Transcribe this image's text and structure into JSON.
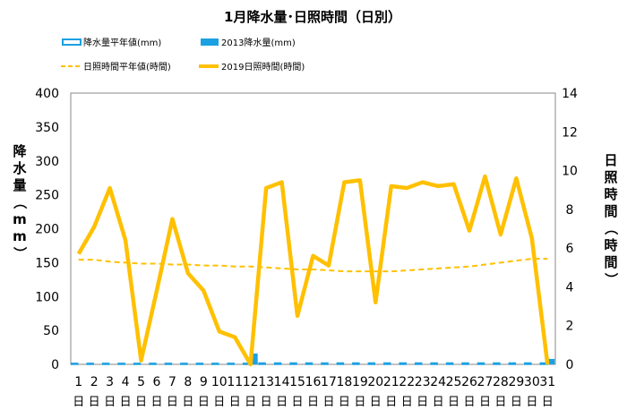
{
  "chart_data": {
    "title": "1月降水量･日照時間（日別）",
    "type": "bar+line",
    "x": [
      "1",
      "2",
      "3",
      "4",
      "5",
      "6",
      "7",
      "8",
      "9",
      "10",
      "11",
      "12",
      "13",
      "14",
      "15",
      "16",
      "17",
      "18",
      "19",
      "20",
      "21",
      "22",
      "23",
      "24",
      "25",
      "26",
      "27",
      "28",
      "29",
      "30",
      "31"
    ],
    "day_suffix": "日",
    "left_axis": {
      "label": "降水量（mm）",
      "range": [
        0,
        400
      ],
      "ticks": [
        0,
        50,
        100,
        150,
        200,
        250,
        300,
        350,
        400
      ]
    },
    "right_axis": {
      "label": "日照時間（時間）",
      "range": [
        0,
        14
      ],
      "ticks": [
        0,
        2,
        4,
        6,
        8,
        10,
        12,
        14
      ]
    },
    "legend": {
      "position": "top",
      "items": {
        "precip_normal": "降水量平年値(mm)",
        "precip_2019": "2013降水量(mm)",
        "sun_normal": "日照時間平年値(時間)",
        "sun_2019": "2019日照時間(時間)"
      }
    },
    "series": [
      {
        "name": "降水量平年値(mm)",
        "axis": "left",
        "type": "bar",
        "style": "outlined",
        "color": "#1BA1E2",
        "values": [
          1.5,
          1.5,
          1.5,
          1.5,
          1.5,
          1.5,
          1.5,
          1.5,
          1.5,
          1.5,
          1.5,
          1.5,
          2,
          2,
          2,
          2,
          2,
          2,
          2,
          2,
          2,
          2,
          2,
          2,
          2,
          2,
          2,
          2,
          2,
          2,
          2
        ]
      },
      {
        "name": "2013降水量(mm)",
        "axis": "left",
        "type": "bar",
        "color": "#1BA1E2",
        "values": [
          0,
          0,
          0,
          0,
          0,
          0,
          0,
          0,
          0,
          0,
          0,
          16,
          0,
          0,
          0,
          0,
          0,
          0,
          0,
          0,
          0,
          0,
          0,
          0,
          0,
          0,
          0,
          0,
          0,
          0,
          8
        ]
      },
      {
        "name": "日照時間平年値(時間)",
        "axis": "right",
        "type": "line",
        "style": "dashed",
        "color": "#FFC000",
        "values": [
          5.4,
          5.4,
          5.3,
          5.25,
          5.2,
          5.2,
          5.15,
          5.15,
          5.1,
          5.1,
          5.05,
          5.05,
          5.0,
          4.95,
          4.9,
          4.9,
          4.85,
          4.8,
          4.8,
          4.8,
          4.8,
          4.85,
          4.9,
          4.95,
          5.0,
          5.05,
          5.15,
          5.25,
          5.35,
          5.45,
          5.45
        ]
      },
      {
        "name": "2019日照時間(時間)",
        "axis": "right",
        "type": "line",
        "color": "#FFC000",
        "values": [
          5.7,
          7.1,
          9.1,
          6.4,
          0.2,
          3.8,
          7.5,
          4.7,
          3.8,
          1.7,
          1.4,
          0.0,
          9.1,
          9.4,
          2.5,
          5.6,
          5.1,
          9.4,
          9.5,
          3.2,
          9.2,
          9.1,
          9.4,
          9.2,
          9.3,
          6.9,
          9.7,
          6.7,
          9.6,
          6.5,
          0.0
        ]
      }
    ],
    "colors": {
      "precip": "#1BA1E2",
      "sunshine": "#FFC000",
      "plot_border": "#888888"
    },
    "grid": false
  }
}
